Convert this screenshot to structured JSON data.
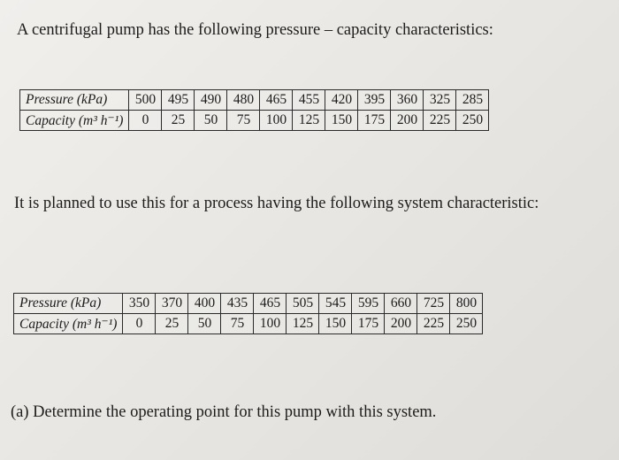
{
  "title": "A centrifugal pump has the following pressure – capacity characteristics:",
  "pump_table": {
    "pressure_label": "Pressure (kPa)",
    "capacity_label": "Capacity (m³ h⁻¹)",
    "pressure": [
      "500",
      "495",
      "490",
      "480",
      "465",
      "455",
      "420",
      "395",
      "360",
      "325",
      "285"
    ],
    "capacity": [
      "0",
      "25",
      "50",
      "75",
      "100",
      "125",
      "150",
      "175",
      "200",
      "225",
      "250"
    ]
  },
  "paragraph": "It is planned to use this for a process having the following system characteristic:",
  "system_table": {
    "pressure_label": "Pressure (kPa)",
    "capacity_label": "Capacity (m³ h⁻¹)",
    "pressure": [
      "350",
      "370",
      "400",
      "435",
      "465",
      "505",
      "545",
      "595",
      "660",
      "725",
      "800"
    ],
    "capacity": [
      "0",
      "25",
      "50",
      "75",
      "100",
      "125",
      "150",
      "175",
      "200",
      "225",
      "250"
    ]
  },
  "question": "(a) Determine the operating point for this pump with this system."
}
